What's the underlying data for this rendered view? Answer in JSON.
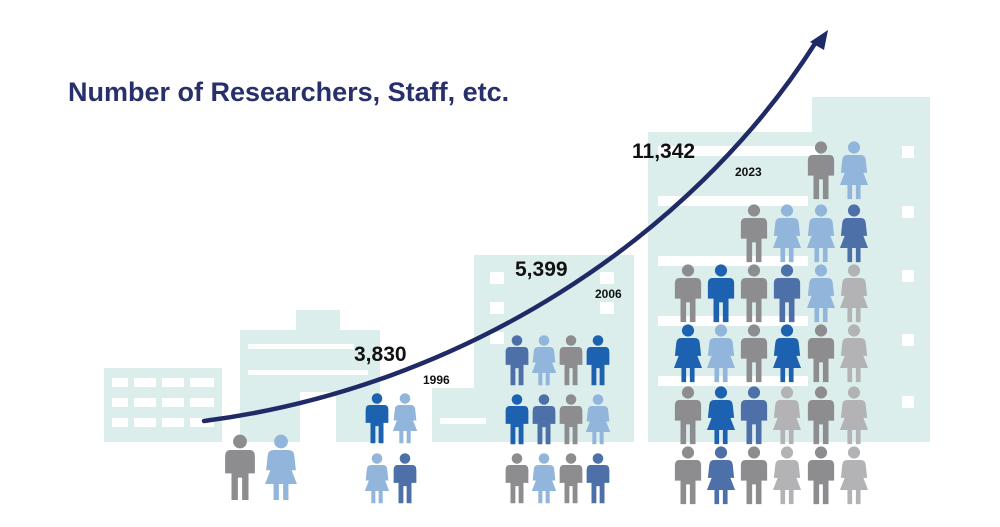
{
  "title": "Number of Researchers, Staff, etc.",
  "colors": {
    "title": "#27306b",
    "arrow": "#1f2a66",
    "building": "#dbeeec",
    "window": "#ffffff",
    "person_gray": "#8d8d8f",
    "person_lightgray": "#b3b3b5",
    "person_blue": "#1c62b0",
    "person_midblue": "#4d70a8",
    "person_lightblue": "#92b6db"
  },
  "chart_data": {
    "type": "line",
    "title": "Number of Researchers, Staff, etc.",
    "xlabel": "",
    "ylabel": "",
    "points": [
      {
        "year": "1996",
        "label": "3,830",
        "value": 3830
      },
      {
        "year": "2006",
        "label": "5,399",
        "value": 5399
      },
      {
        "year": "2023",
        "label": "11,342",
        "value": 11342
      }
    ],
    "pictogram": {
      "icon": "person-icon",
      "groups": [
        {
          "name": "origin",
          "people": [
            "gray-m",
            "lightblue-f"
          ]
        },
        {
          "name": "1996",
          "people": [
            "blue-m",
            "lightblue-f",
            "lightblue-f",
            "midblue-m"
          ]
        },
        {
          "name": "2006",
          "people": [
            "midblue-m",
            "lightblue-f",
            "gray-m",
            "blue-m",
            "blue-m",
            "midblue-m",
            "gray-m",
            "lightblue-f",
            "gray-m",
            "lightblue-f",
            "gray-m",
            "midblue-m"
          ]
        },
        {
          "name": "2023",
          "people": [
            "gray-m",
            "lightblue-f",
            "gray-m",
            "lightblue-f",
            "lightblue-f",
            "midblue-f",
            "gray-m",
            "blue-m",
            "gray-m",
            "midblue-m",
            "lightblue-f",
            "lightgray-f",
            "blue-f",
            "lightblue-f",
            "gray-m",
            "blue-f",
            "gray-m",
            "lightgray-f",
            "gray-m",
            "blue-f",
            "midblue-m",
            "lightgray-f",
            "gray-m",
            "lightgray-f",
            "gray-m",
            "midblue-f",
            "gray-m",
            "lightgray-f",
            "gray-m",
            "lightgray-f"
          ]
        }
      ]
    }
  }
}
